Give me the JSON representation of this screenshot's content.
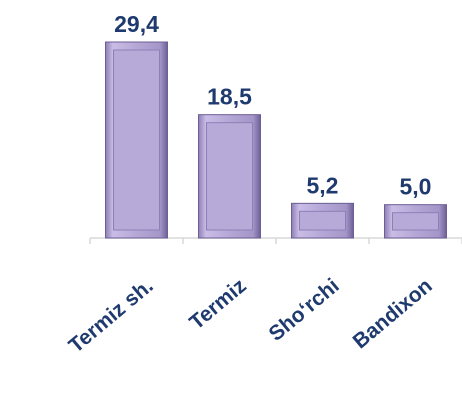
{
  "chart_data": {
    "type": "bar",
    "categories": [
      "Termiz sh.",
      "Termiz",
      "Sho‘rchi",
      "Bandixon"
    ],
    "values": [
      29.4,
      18.5,
      5.2,
      5.0
    ],
    "value_labels": [
      "29,4",
      "18,5",
      "5,2",
      "5,0"
    ],
    "color": "#b4a7d6"
  }
}
